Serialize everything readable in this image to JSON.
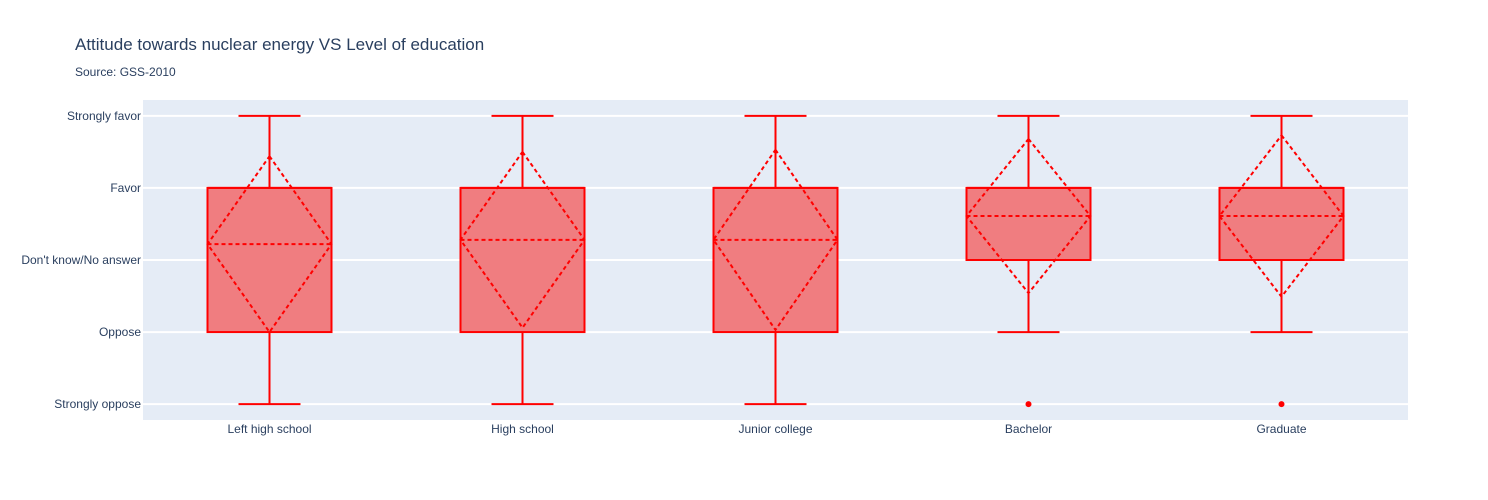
{
  "chart_data": {
    "type": "box",
    "title": "Attitude towards nuclear energy VS Level of education",
    "subtitle": "Source: GSS-2010",
    "xlabel": "",
    "ylabel": "",
    "y_categories": [
      "Strongly oppose",
      "Oppose",
      "Don't know/No answer",
      "Favor",
      "Strongly favor"
    ],
    "ylim": [
      0.78,
      5.22
    ],
    "categories": [
      "Left high school",
      "High school",
      "Junior college",
      "Bachelor",
      "Graduate"
    ],
    "boxes": [
      {
        "name": "Left high school",
        "min": 1,
        "q1": 2,
        "median": 4,
        "q3": 4,
        "max": 5,
        "mean": 3.22,
        "sd": 1.22,
        "outliers": []
      },
      {
        "name": "High school",
        "min": 1,
        "q1": 2,
        "median": 4,
        "q3": 4,
        "max": 5,
        "mean": 3.28,
        "sd": 1.22,
        "outliers": []
      },
      {
        "name": "Junior college",
        "min": 1,
        "q1": 2,
        "median": 4,
        "q3": 4,
        "max": 5,
        "mean": 3.28,
        "sd": 1.25,
        "outliers": []
      },
      {
        "name": "Bachelor",
        "min": 2,
        "q1": 3,
        "median": 4,
        "q3": 4,
        "max": 5,
        "mean": 3.61,
        "sd": 1.07,
        "outliers": [
          1
        ]
      },
      {
        "name": "Graduate",
        "min": 2,
        "q1": 3,
        "median": 4,
        "q3": 4,
        "max": 5,
        "mean": 3.61,
        "sd": 1.12,
        "outliers": [
          1
        ]
      }
    ],
    "colors": {
      "line": "#ff0000",
      "fill": "#f07d80",
      "plot_bg": "#e5ecf6",
      "grid": "#ffffff",
      "text": "#2a3f5f"
    },
    "grid": true,
    "legend": "none"
  }
}
